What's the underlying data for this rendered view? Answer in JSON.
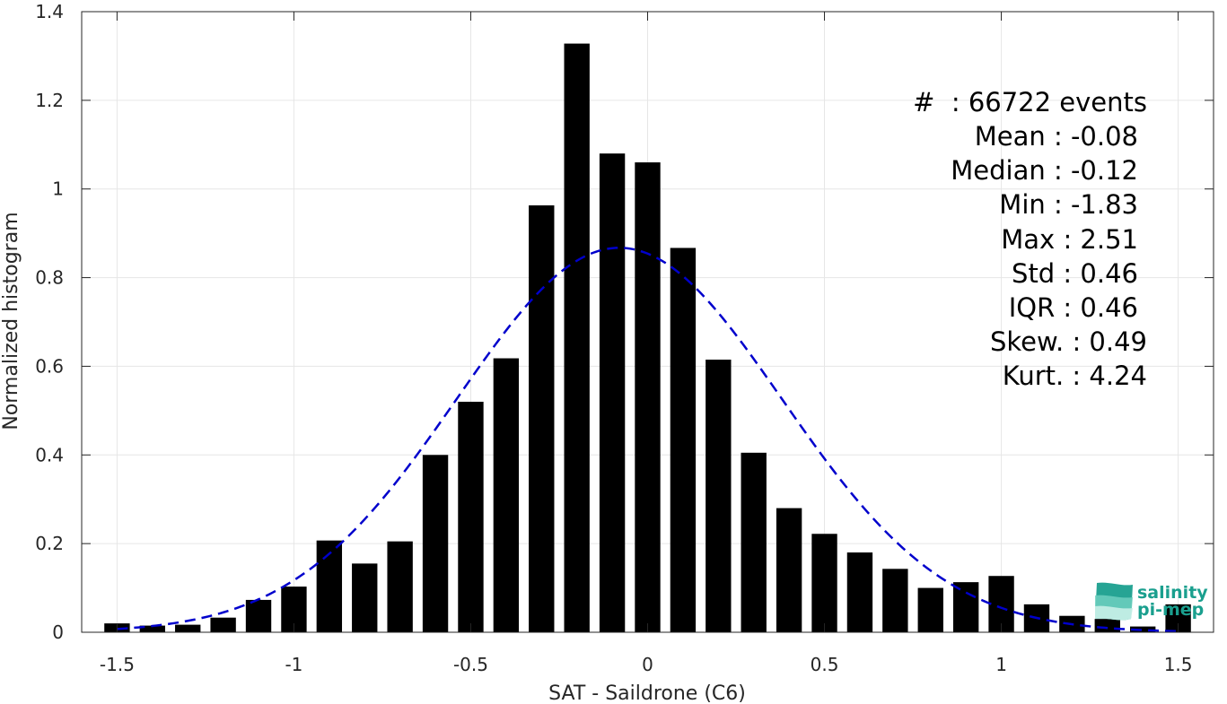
{
  "chart_data": {
    "type": "bar",
    "xlabel": "SAT - Saildrone (C6)",
    "ylabel": "Normalized histogram",
    "xlim": [
      -1.6,
      1.6
    ],
    "ylim": [
      0,
      1.4
    ],
    "xticks": [
      -1.5,
      -1,
      -0.5,
      0,
      0.5,
      1,
      1.5
    ],
    "xtick_labels": [
      "-1.5",
      "-1",
      "-0.5",
      "0",
      "0.5",
      "1",
      "1.5"
    ],
    "yticks": [
      0,
      0.2,
      0.4,
      0.6,
      0.8,
      1,
      1.2,
      1.4
    ],
    "ytick_labels": [
      "0",
      "0.2",
      "0.4",
      "0.6",
      "0.8",
      "1",
      "1.2",
      "1.4"
    ],
    "grid": true,
    "bar_color": "#000000",
    "bins": {
      "x": [
        -1.5,
        -1.4,
        -1.3,
        -1.2,
        -1.1,
        -1.0,
        -0.9,
        -0.8,
        -0.7,
        -0.6,
        -0.5,
        -0.4,
        -0.3,
        -0.2,
        -0.1,
        0.0,
        0.1,
        0.2,
        0.3,
        0.4,
        0.5,
        0.6,
        0.7,
        0.8,
        0.9,
        1.0,
        1.1,
        1.2,
        1.3,
        1.4,
        1.5
      ],
      "values": [
        0.02,
        0.015,
        0.017,
        0.033,
        0.073,
        0.103,
        0.207,
        0.155,
        0.205,
        0.4,
        0.52,
        0.618,
        0.963,
        1.328,
        1.08,
        1.06,
        0.867,
        0.615,
        0.405,
        0.28,
        0.222,
        0.18,
        0.143,
        0.1,
        0.113,
        0.127,
        0.063,
        0.037,
        0.03,
        0.013,
        0.063
      ]
    },
    "fit_curve": {
      "type": "normal",
      "mean": -0.08,
      "std": 0.46,
      "color": "#0000cc",
      "style": "dashed"
    },
    "stats": {
      "events": "#  : 66722 events",
      "mean": "Mean : -0.08",
      "median": "Median : -0.12",
      "min": "Min : -1.83",
      "max": "Max : 2.51",
      "std": "Std : 0.46",
      "iqr": "IQR : 0.46",
      "skew": "Skew. : 0.49",
      "kurt": "Kurt. : 4.24"
    }
  },
  "logo": {
    "line1": "salinity",
    "line2": "pi-mep",
    "color": "#1a9f8e"
  }
}
